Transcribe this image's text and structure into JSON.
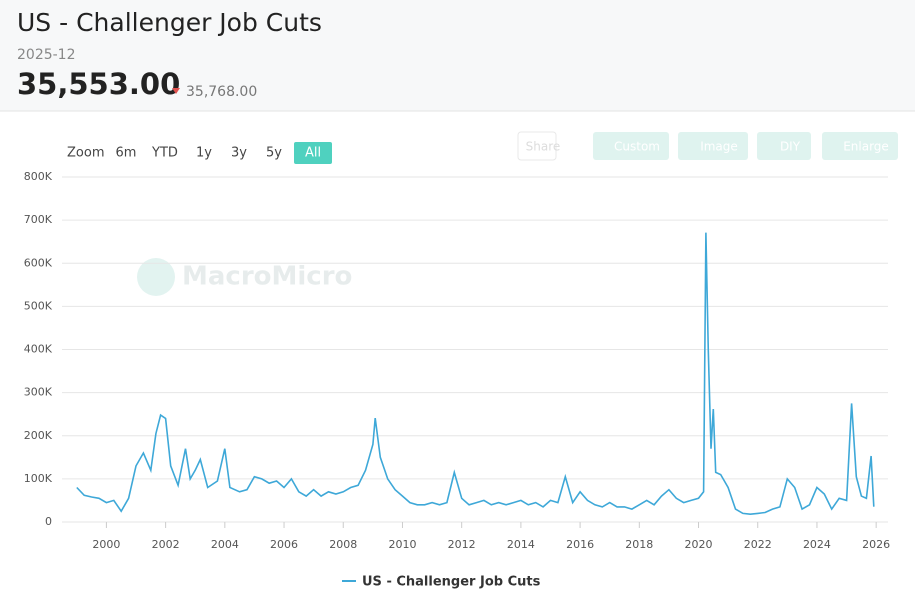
{
  "header": {
    "title": "US - Challenger Job Cuts",
    "date": "2025-12",
    "value": "35,553.00",
    "previous": "35,768.00"
  },
  "toolbar": {
    "zoom_label": "Zoom",
    "ranges": [
      "6m",
      "YTD",
      "1y",
      "3y",
      "5y",
      "All"
    ],
    "active": "All",
    "buttons": [
      "Share",
      "Custom",
      "Image",
      "DIY",
      "Enlarge"
    ]
  },
  "watermark": "MacroMicro",
  "chart_data": {
    "type": "line",
    "x": [
      1999.0,
      1999.25,
      1999.5,
      1999.75,
      2000.0,
      2000.25,
      2000.5,
      2000.75,
      2001.0,
      2001.25,
      2001.5,
      2001.67,
      2001.83,
      2002.0,
      2002.17,
      2002.42,
      2002.67,
      2002.83,
      2003.0,
      2003.17,
      2003.42,
      2003.75,
      2004.0,
      2004.17,
      2004.5,
      2004.75,
      2005.0,
      2005.25,
      2005.5,
      2005.75,
      2006.0,
      2006.25,
      2006.5,
      2006.75,
      2007.0,
      2007.25,
      2007.5,
      2007.75,
      2008.0,
      2008.25,
      2008.5,
      2008.75,
      2009.0,
      2009.08,
      2009.25,
      2009.5,
      2009.75,
      2010.0,
      2010.25,
      2010.5,
      2010.75,
      2011.0,
      2011.25,
      2011.5,
      2011.75,
      2012.0,
      2012.25,
      2012.5,
      2012.75,
      2013.0,
      2013.25,
      2013.5,
      2013.75,
      2014.0,
      2014.25,
      2014.5,
      2014.75,
      2015.0,
      2015.25,
      2015.5,
      2015.75,
      2016.0,
      2016.25,
      2016.5,
      2016.75,
      2017.0,
      2017.25,
      2017.5,
      2017.75,
      2018.0,
      2018.25,
      2018.5,
      2018.75,
      2019.0,
      2019.25,
      2019.5,
      2019.75,
      2020.0,
      2020.17,
      2020.25,
      2020.33,
      2020.42,
      2020.5,
      2020.58,
      2020.75,
      2021.0,
      2021.25,
      2021.5,
      2021.75,
      2022.0,
      2022.25,
      2022.5,
      2022.75,
      2023.0,
      2023.25,
      2023.5,
      2023.75,
      2024.0,
      2024.25,
      2024.5,
      2024.75,
      2025.0,
      2025.17,
      2025.33,
      2025.5,
      2025.67,
      2025.83,
      2025.92
    ],
    "series": [
      {
        "name": "US - Challenger Job Cuts",
        "color": "#3ea8d8",
        "values": [
          80000,
          62000,
          58000,
          55000,
          45000,
          50000,
          25000,
          55000,
          130000,
          160000,
          120000,
          205000,
          248000,
          240000,
          130000,
          85000,
          170000,
          100000,
          120000,
          145000,
          80000,
          95000,
          170000,
          80000,
          70000,
          75000,
          105000,
          100000,
          90000,
          95000,
          80000,
          100000,
          70000,
          60000,
          75000,
          60000,
          70000,
          65000,
          70000,
          80000,
          85000,
          120000,
          180000,
          241000,
          150000,
          100000,
          75000,
          60000,
          45000,
          40000,
          40000,
          45000,
          40000,
          45000,
          115000,
          55000,
          40000,
          45000,
          50000,
          40000,
          45000,
          40000,
          45000,
          50000,
          40000,
          45000,
          35000,
          50000,
          45000,
          105000,
          45000,
          70000,
          50000,
          40000,
          35000,
          45000,
          35000,
          35000,
          30000,
          40000,
          50000,
          40000,
          60000,
          75000,
          55000,
          45000,
          50000,
          55000,
          70000,
          671000,
          397000,
          170000,
          262000,
          115000,
          110000,
          80000,
          30000,
          20000,
          18000,
          20000,
          22000,
          30000,
          35000,
          100000,
          80000,
          30000,
          40000,
          80000,
          65000,
          30000,
          55000,
          50000,
          275000,
          105000,
          60000,
          55000,
          153000,
          35553
        ]
      }
    ],
    "xlim": [
      1998.5,
      2026.4
    ],
    "xticks": [
      2000,
      2002,
      2004,
      2006,
      2008,
      2010,
      2012,
      2014,
      2016,
      2018,
      2020,
      2022,
      2024,
      2026
    ],
    "ylim": [
      0,
      800000
    ],
    "yticks": [
      0,
      {
        "value": 100000,
        "label": "100K"
      },
      {
        "value": 200000,
        "label": "200K"
      },
      {
        "value": 300000,
        "label": "300K"
      },
      {
        "value": 400000,
        "label": "400K"
      },
      {
        "value": 500000,
        "label": "500K"
      },
      {
        "value": 600000,
        "label": "600K"
      },
      {
        "value": 700000,
        "label": "700K"
      },
      {
        "value": 800000,
        "label": "800K"
      }
    ],
    "grid": true,
    "legend": "bottom"
  }
}
